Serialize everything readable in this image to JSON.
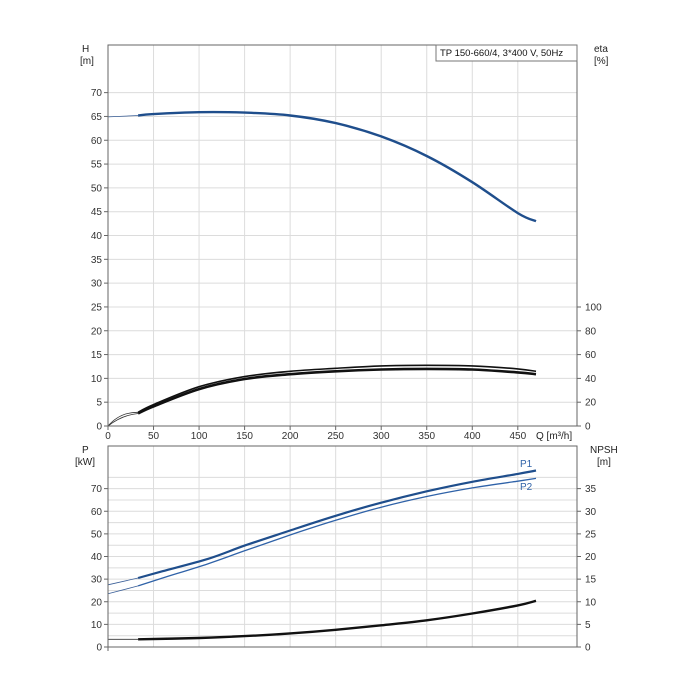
{
  "chart_data": [
    {
      "type": "line",
      "title": "TP 150-660/4, 3*400 V, 50Hz",
      "xlabel": "Q [m³/h]",
      "xlim": [
        0,
        515
      ],
      "x_ticks": [
        0,
        50,
        100,
        150,
        200,
        250,
        300,
        350,
        400,
        450
      ],
      "y_left": {
        "label_top": "H",
        "label_unit": "[m]",
        "lim": [
          0,
          80
        ],
        "ticks": [
          0,
          5,
          10,
          15,
          20,
          25,
          30,
          35,
          40,
          45,
          50,
          55,
          60,
          65,
          70
        ]
      },
      "y_right": {
        "label_top": "eta",
        "label_unit": "[%]",
        "lim": [
          0,
          100
        ],
        "ticks": [
          0,
          20,
          40,
          60,
          80,
          100
        ]
      },
      "grid": true,
      "series": [
        {
          "role": "head",
          "axis": "left",
          "color": "#1f4e8c",
          "x": [
            33,
            50,
            100,
            150,
            200,
            250,
            300,
            350,
            400,
            450,
            470
          ],
          "y": [
            65.2,
            65.5,
            65.9,
            65.8,
            65.2,
            63.6,
            60.8,
            56.7,
            51.2,
            44.7,
            43.0
          ]
        },
        {
          "role": "efficiency-upper",
          "axis": "right",
          "color": "#111111",
          "x": [
            33,
            50,
            100,
            150,
            200,
            250,
            300,
            350,
            400,
            450,
            470
          ],
          "y": [
            11.5,
            18,
            33,
            41.5,
            46,
            48.5,
            50.5,
            51,
            50.5,
            48,
            46
          ]
        },
        {
          "role": "efficiency-lower",
          "axis": "right",
          "color": "#111111",
          "x": [
            33,
            50,
            100,
            150,
            200,
            250,
            300,
            350,
            400,
            450,
            470
          ],
          "y": [
            10.5,
            16.5,
            31,
            39.5,
            43.5,
            46,
            47.5,
            48,
            47.5,
            45,
            43.5
          ]
        }
      ]
    },
    {
      "type": "line",
      "xlim": [
        0,
        515
      ],
      "y_left": {
        "label_top": "P",
        "label_unit": "[kW]",
        "lim": [
          0,
          80
        ],
        "ticks": [
          0,
          10,
          20,
          30,
          40,
          50,
          60,
          70
        ]
      },
      "y_right": {
        "label_top": "NPSH",
        "label_unit": "[m]",
        "lim": [
          0,
          40
        ],
        "ticks": [
          0,
          5,
          10,
          15,
          20,
          25,
          30,
          35
        ]
      },
      "grid": true,
      "series": [
        {
          "name": "P1",
          "axis": "left",
          "color": "#1f4e8c",
          "x": [
            33,
            60,
            110,
            150,
            200,
            250,
            300,
            350,
            400,
            450,
            470
          ],
          "y": [
            30.5,
            33.5,
            39,
            44.8,
            51.5,
            58,
            63.8,
            68.8,
            73,
            76.5,
            78
          ]
        },
        {
          "name": "P2",
          "axis": "left",
          "color": "#2f62a8",
          "x": [
            33,
            60,
            110,
            150,
            200,
            250,
            300,
            350,
            400,
            450,
            470
          ],
          "y": [
            27,
            30.5,
            36.8,
            42.5,
            49.5,
            56,
            61.8,
            66.5,
            70.3,
            73.3,
            74.5
          ]
        },
        {
          "role": "npsh",
          "axis": "right",
          "color": "#111111",
          "x": [
            33,
            100,
            150,
            200,
            250,
            300,
            350,
            400,
            450,
            470
          ],
          "y": [
            1.7,
            2.0,
            2.4,
            3.0,
            3.8,
            4.8,
            5.9,
            7.4,
            9.2,
            10.2
          ]
        }
      ]
    }
  ]
}
